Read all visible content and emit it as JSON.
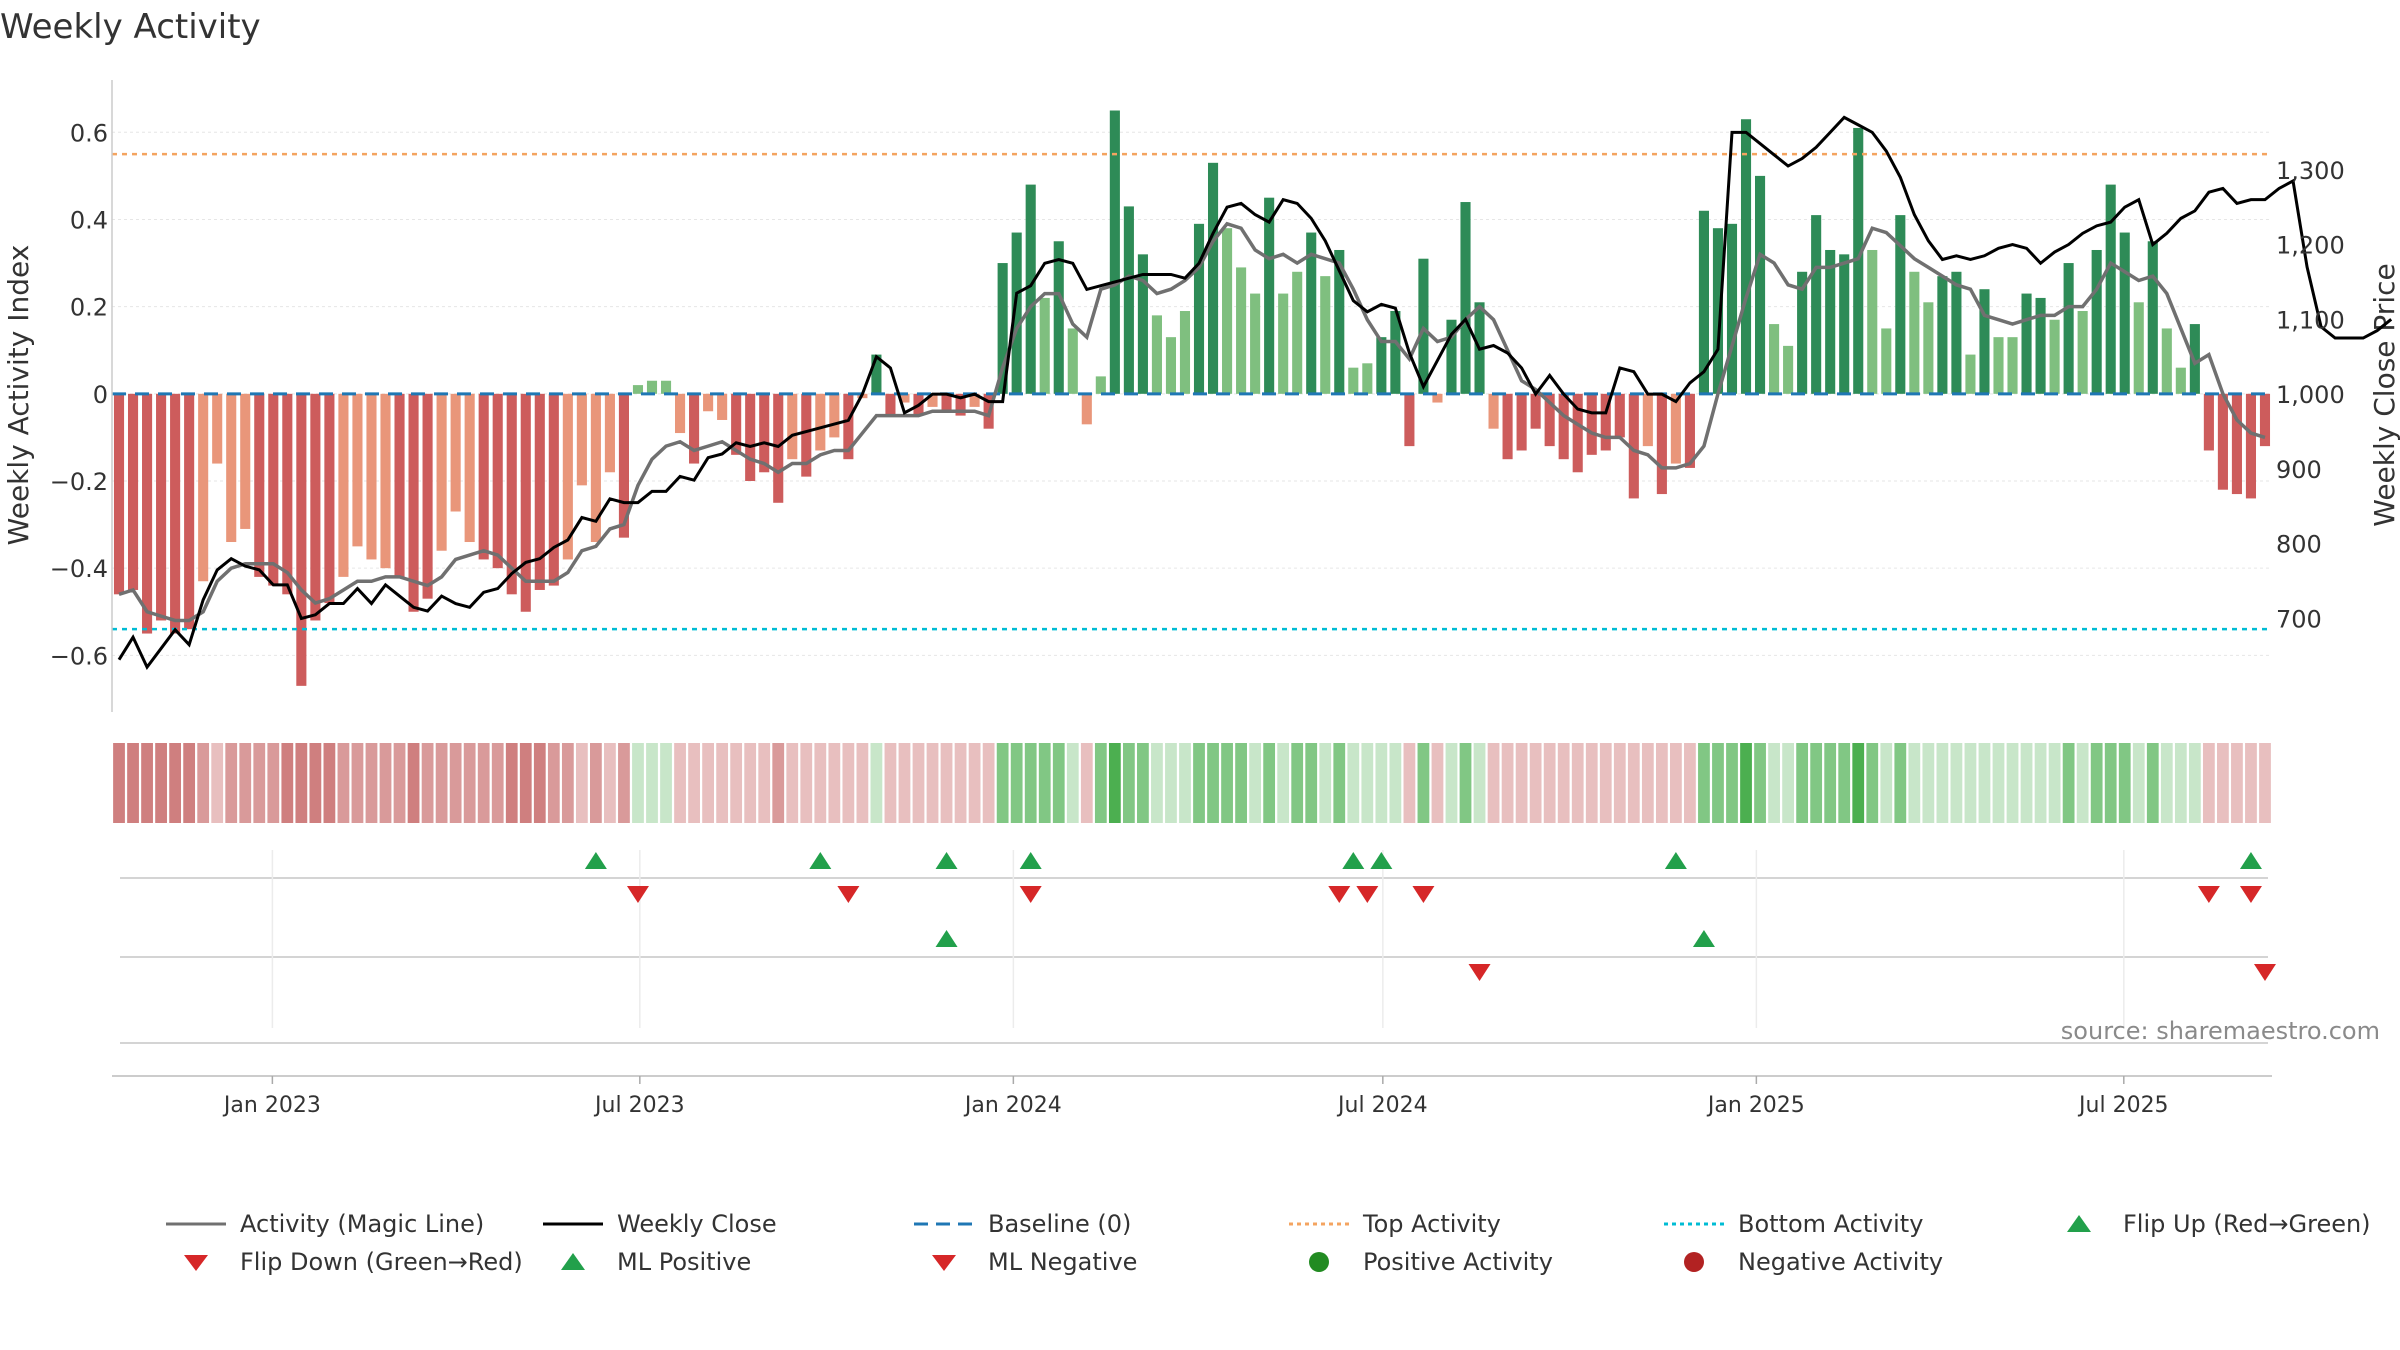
{
  "chart_data": {
    "type": "bar",
    "title": "Weekly Activity",
    "ylabel": "Weekly Activity Index",
    "y2label": "Weekly Close Price",
    "ylim": [
      -0.73,
      0.72
    ],
    "y2lim": [
      575,
      1420
    ],
    "yticks": [
      "0.6",
      "0.4",
      "0.2",
      "0",
      "−0.2",
      "−0.4",
      "−0.6"
    ],
    "y2ticks": [
      "1,300",
      "1,200",
      "1,100",
      "1,000",
      "900",
      "800",
      "700"
    ],
    "x_start": "2022-10-14",
    "x_end": "2025-09-12",
    "xticks": [
      {
        "label": "Jan 2023",
        "date": "2023-01-01"
      },
      {
        "label": "Jul 2023",
        "date": "2023-07-01"
      },
      {
        "label": "Jan 2024",
        "date": "2024-01-01"
      },
      {
        "label": "Jul 2024",
        "date": "2024-07-01"
      },
      {
        "label": "Jan 2025",
        "date": "2025-01-01"
      },
      {
        "label": "Jul 2025",
        "date": "2025-07-01"
      }
    ],
    "top_activity": 0.55,
    "bottom_activity": -0.54,
    "activity": [
      -0.46,
      -0.45,
      -0.55,
      -0.52,
      -0.55,
      -0.54,
      -0.43,
      -0.16,
      -0.34,
      -0.31,
      -0.42,
      -0.44,
      -0.46,
      -0.67,
      -0.52,
      -0.48,
      -0.42,
      -0.35,
      -0.38,
      -0.4,
      -0.42,
      -0.5,
      -0.47,
      -0.36,
      -0.27,
      -0.34,
      -0.38,
      -0.4,
      -0.46,
      -0.5,
      -0.45,
      -0.44,
      -0.38,
      -0.21,
      -0.34,
      -0.18,
      -0.33,
      0.02,
      0.03,
      0.03,
      -0.09,
      -0.16,
      -0.04,
      -0.06,
      -0.14,
      -0.2,
      -0.18,
      -0.25,
      -0.15,
      -0.19,
      -0.13,
      -0.1,
      -0.15,
      -0.01,
      0.09,
      -0.05,
      -0.02,
      -0.05,
      -0.03,
      -0.04,
      -0.05,
      -0.03,
      -0.08,
      0.3,
      0.37,
      0.48,
      0.22,
      0.35,
      0.15,
      -0.07,
      0.04,
      0.65,
      0.43,
      0.32,
      0.18,
      0.13,
      0.19,
      0.39,
      0.53,
      0.38,
      0.29,
      0.23,
      0.45,
      0.23,
      0.28,
      0.37,
      0.27,
      0.33,
      0.06,
      0.07,
      0.13,
      0.19,
      -0.12,
      0.31,
      -0.02,
      0.17,
      0.44,
      0.21,
      -0.08,
      -0.15,
      -0.13,
      -0.08,
      -0.12,
      -0.15,
      -0.18,
      -0.14,
      -0.13,
      -0.1,
      -0.24,
      -0.12,
      -0.23,
      -0.16,
      -0.17,
      0.42,
      0.38,
      0.39,
      0.63,
      0.5,
      0.16,
      0.11,
      0.28,
      0.41,
      0.33,
      0.32,
      0.61,
      0.33,
      0.15,
      0.41,
      0.28,
      0.21,
      0.27,
      0.28,
      0.09,
      0.24,
      0.13,
      0.13,
      0.23,
      0.22,
      0.17,
      0.3,
      0.19,
      0.33,
      0.48,
      0.37,
      0.21,
      0.35,
      0.15,
      0.06,
      0.16,
      -0.13,
      -0.22,
      -0.23,
      -0.24,
      -0.12
    ],
    "magic_line": [
      -0.46,
      -0.45,
      -0.5,
      -0.51,
      -0.52,
      -0.52,
      -0.5,
      -0.43,
      -0.4,
      -0.39,
      -0.39,
      -0.39,
      -0.41,
      -0.45,
      -0.48,
      -0.47,
      -0.45,
      -0.43,
      -0.43,
      -0.42,
      -0.42,
      -0.43,
      -0.44,
      -0.42,
      -0.38,
      -0.37,
      -0.36,
      -0.37,
      -0.4,
      -0.43,
      -0.43,
      -0.43,
      -0.41,
      -0.36,
      -0.35,
      -0.31,
      -0.3,
      -0.21,
      -0.15,
      -0.12,
      -0.11,
      -0.13,
      -0.12,
      -0.11,
      -0.13,
      -0.15,
      -0.16,
      -0.18,
      -0.16,
      -0.16,
      -0.14,
      -0.13,
      -0.13,
      -0.09,
      -0.05,
      -0.05,
      -0.05,
      -0.05,
      -0.04,
      -0.04,
      -0.04,
      -0.04,
      -0.05,
      0.06,
      0.15,
      0.2,
      0.23,
      0.23,
      0.16,
      0.13,
      0.24,
      0.25,
      0.27,
      0.26,
      0.23,
      0.24,
      0.26,
      0.29,
      0.35,
      0.39,
      0.38,
      0.33,
      0.31,
      0.32,
      0.3,
      0.32,
      0.31,
      0.3,
      0.24,
      0.17,
      0.12,
      0.12,
      0.08,
      0.15,
      0.12,
      0.13,
      0.17,
      0.2,
      0.17,
      0.1,
      0.03,
      0.01,
      -0.02,
      -0.05,
      -0.07,
      -0.09,
      -0.1,
      -0.1,
      -0.13,
      -0.14,
      -0.17,
      -0.17,
      -0.16,
      -0.12,
      0.0,
      0.11,
      0.22,
      0.32,
      0.3,
      0.25,
      0.24,
      0.29,
      0.29,
      0.3,
      0.31,
      0.38,
      0.37,
      0.34,
      0.31,
      0.29,
      0.27,
      0.25,
      0.24,
      0.18,
      0.17,
      0.16,
      0.17,
      0.18,
      0.18,
      0.2,
      0.2,
      0.24,
      0.3,
      0.28,
      0.26,
      0.27,
      0.23,
      0.15,
      0.07,
      0.09,
      0.0,
      -0.06,
      -0.09,
      -0.1
    ]
  },
  "close": [
    645,
    675,
    635,
    660,
    685,
    665,
    725,
    765,
    780,
    770,
    765,
    745,
    745,
    700,
    705,
    720,
    720,
    740,
    720,
    745,
    730,
    715,
    710,
    730,
    720,
    715,
    735,
    740,
    760,
    775,
    780,
    795,
    805,
    835,
    830,
    860,
    855,
    855,
    870,
    870,
    890,
    885,
    915,
    920,
    935,
    930,
    935,
    930,
    945,
    950,
    955,
    960,
    965,
    1000,
    1050,
    1035,
    975,
    985,
    1000,
    1000,
    995,
    1000,
    990,
    990,
    1135,
    1145,
    1175,
    1180,
    1175,
    1140,
    1145,
    1150,
    1155,
    1160,
    1160,
    1160,
    1155,
    1175,
    1215,
    1250,
    1255,
    1240,
    1230,
    1260,
    1255,
    1235,
    1205,
    1165,
    1125,
    1110,
    1120,
    1115,
    1055,
    1010,
    1045,
    1080,
    1100,
    1060,
    1065,
    1055,
    1035,
    1000,
    1025,
    1000,
    980,
    975,
    975,
    1035,
    1030,
    1000,
    1000,
    990,
    1015,
    1030,
    1060,
    1350,
    1350,
    1335,
    1320,
    1305,
    1315,
    1330,
    1350,
    1370,
    1360,
    1350,
    1325,
    1290,
    1240,
    1205,
    1180,
    1185,
    1180,
    1185,
    1195,
    1200,
    1195,
    1175,
    1190,
    1200,
    1215,
    1225,
    1230,
    1250,
    1260,
    1200,
    1215,
    1235,
    1245,
    1270,
    1275,
    1255,
    1260,
    1260,
    1275,
    1285,
    1170,
    1090,
    1075,
    1075,
    1075,
    1085,
    1100
  ],
  "band_levels": [
    -3,
    -3,
    -3,
    -3,
    -3,
    -3,
    -2,
    -1,
    -2,
    -2,
    -2,
    -2,
    -3,
    -3,
    -3,
    -3,
    -2,
    -2,
    -2,
    -2,
    -2,
    -3,
    -2,
    -2,
    -2,
    -2,
    -2,
    -2,
    -3,
    -3,
    -3,
    -2,
    -2,
    -1,
    -2,
    -1,
    -2,
    1,
    1,
    1,
    -1,
    -1,
    -1,
    -1,
    -1,
    -1,
    -1,
    -2,
    -1,
    -1,
    -1,
    -1,
    -1,
    -1,
    1,
    -1,
    -1,
    -1,
    -1,
    -1,
    -1,
    -1,
    -1,
    2,
    2,
    2,
    2,
    2,
    1,
    -1,
    2,
    3,
    2,
    2,
    1,
    1,
    1,
    2,
    2,
    2,
    2,
    1,
    2,
    1,
    2,
    2,
    1,
    2,
    1,
    1,
    1,
    1,
    -1,
    2,
    -1,
    1,
    2,
    1,
    -1,
    -1,
    -1,
    -1,
    -1,
    -1,
    -1,
    -1,
    -1,
    -1,
    -1,
    -1,
    -1,
    -1,
    -1,
    2,
    2,
    2,
    3,
    2,
    1,
    1,
    2,
    2,
    2,
    2,
    3,
    2,
    1,
    2,
    1,
    1,
    1,
    1,
    1,
    1,
    1,
    1,
    1,
    1,
    1,
    2,
    1,
    2,
    2,
    2,
    1,
    2,
    1,
    1,
    1,
    -1,
    -1,
    -1,
    -1,
    -1
  ],
  "signals": {
    "flip_up": [
      34,
      50,
      59,
      65,
      88,
      90,
      111,
      152
    ],
    "flip_down": [
      37,
      52,
      65,
      87,
      89,
      93,
      149,
      152
    ],
    "ml_positive": [
      59,
      113
    ],
    "ml_negative": [
      97,
      153
    ]
  },
  "colors": {
    "pos_dark": "#2e8b57",
    "pos_light": "#7fbf7f",
    "neg_dark": "#cd5c5c",
    "neg_light": "#e9967a",
    "magic_line": "#707070",
    "close_line": "#000000",
    "baseline": "#1f77b4",
    "top_activity": "#f4a460",
    "bottom_activity": "#00bcd4",
    "up_marker": "#22a04b",
    "down_marker": "#d62728",
    "band_pos": [
      "#c8e6c9",
      "#81c784",
      "#4caf50"
    ],
    "band_neg": [
      "#e8bfbf",
      "#d99a9a",
      "#cf7f7f"
    ]
  },
  "source": "source: sharemaestro.com",
  "legend": [
    {
      "label": "Activity (Magic Line)",
      "icon": "gray-line-icon"
    },
    {
      "label": "Weekly Close",
      "icon": "black-line-icon"
    },
    {
      "label": "Baseline (0)",
      "icon": "blue-dashed-line-icon"
    },
    {
      "label": "Top Activity",
      "icon": "orange-dotted-line-icon"
    },
    {
      "label": "Bottom Activity",
      "icon": "cyan-dotted-line-icon"
    },
    {
      "label": "Flip Up (Red→Green)",
      "icon": "green-triangle-up-icon"
    },
    {
      "label": "Flip Down (Green→Red)",
      "icon": "red-triangle-down-icon"
    },
    {
      "label": "ML Positive",
      "icon": "green-triangle-up-icon"
    },
    {
      "label": "ML Negative",
      "icon": "red-triangle-down-icon"
    },
    {
      "label": "Positive Activity",
      "icon": "green-dot-icon"
    },
    {
      "label": "Negative Activity",
      "icon": "red-dot-icon"
    }
  ]
}
